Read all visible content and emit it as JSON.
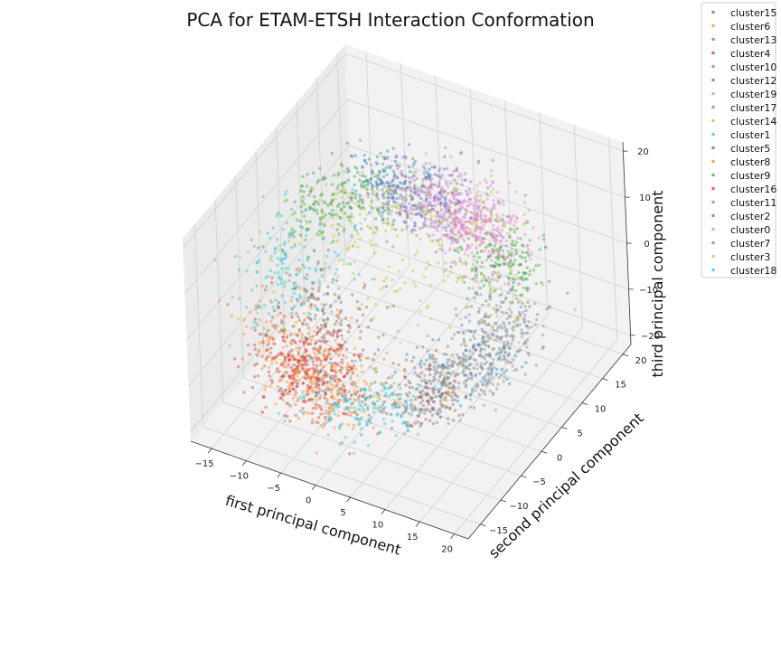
{
  "chart_data": {
    "type": "scatter",
    "projection": "3d",
    "title": "PCA for ETAM-ETSH Interaction Conformation",
    "xlabel": "first principal component",
    "ylabel": "second principal component",
    "zlabel": "third principal component",
    "xlim": [
      -18,
      22
    ],
    "ylim": [
      -18,
      22
    ],
    "zlim": [
      -22,
      22
    ],
    "xticks": [
      "−15",
      "−10",
      "−5",
      "0",
      "5",
      "10",
      "15",
      "20"
    ],
    "yticks": [
      "−15",
      "−10",
      "−5",
      "0",
      "5",
      "10",
      "15",
      "20"
    ],
    "zticks": [
      "−20",
      "−10",
      "0",
      "10",
      "20"
    ],
    "legend_position": "top-right",
    "marker_alpha": 0.4,
    "series": [
      {
        "name": "cluster15",
        "color": "#1f77b4",
        "center": [
          10,
          -2,
          -5
        ]
      },
      {
        "name": "cluster6",
        "color": "#ff7f0e",
        "center": [
          -4,
          -6,
          -8
        ]
      },
      {
        "name": "cluster13",
        "color": "#2ca02c",
        "center": [
          -12,
          6,
          10
        ]
      },
      {
        "name": "cluster4",
        "color": "#d62728",
        "center": [
          -6,
          -12,
          -14
        ]
      },
      {
        "name": "cluster10",
        "color": "#9467bd",
        "center": [
          4,
          10,
          16
        ]
      },
      {
        "name": "cluster12",
        "color": "#8c564b",
        "center": [
          12,
          -6,
          -16
        ]
      },
      {
        "name": "cluster19",
        "color": "#e377c2",
        "center": [
          10,
          12,
          10
        ]
      },
      {
        "name": "cluster17",
        "color": "#7f7f7f",
        "center": [
          16,
          -2,
          -8
        ]
      },
      {
        "name": "cluster14",
        "color": "#bcbd22",
        "center": [
          -2,
          4,
          2
        ]
      },
      {
        "name": "cluster1",
        "color": "#17becf",
        "center": [
          -14,
          2,
          -4
        ]
      },
      {
        "name": "cluster5",
        "color": "#1f77b4",
        "center": [
          -6,
          14,
          14
        ]
      },
      {
        "name": "cluster8",
        "color": "#ff7f0e",
        "center": [
          -2,
          -10,
          -4
        ]
      },
      {
        "name": "cluster9",
        "color": "#2ca02c",
        "center": [
          14,
          14,
          2
        ]
      },
      {
        "name": "cluster16",
        "color": "#d62728",
        "center": [
          -10,
          -8,
          -14
        ]
      },
      {
        "name": "cluster11",
        "color": "#9467bd",
        "center": [
          0,
          12,
          14
        ]
      },
      {
        "name": "cluster2",
        "color": "#8c564b",
        "center": [
          -10,
          0,
          -12
        ]
      },
      {
        "name": "cluster0",
        "color": "#e377c2",
        "center": [
          6,
          16,
          6
        ]
      },
      {
        "name": "cluster7",
        "color": "#7f7f7f",
        "center": [
          18,
          4,
          -4
        ]
      },
      {
        "name": "cluster3",
        "color": "#bcbd22",
        "center": [
          2,
          2,
          6
        ]
      },
      {
        "name": "cluster18",
        "color": "#17becf",
        "center": [
          4,
          -14,
          -10
        ]
      }
    ]
  }
}
